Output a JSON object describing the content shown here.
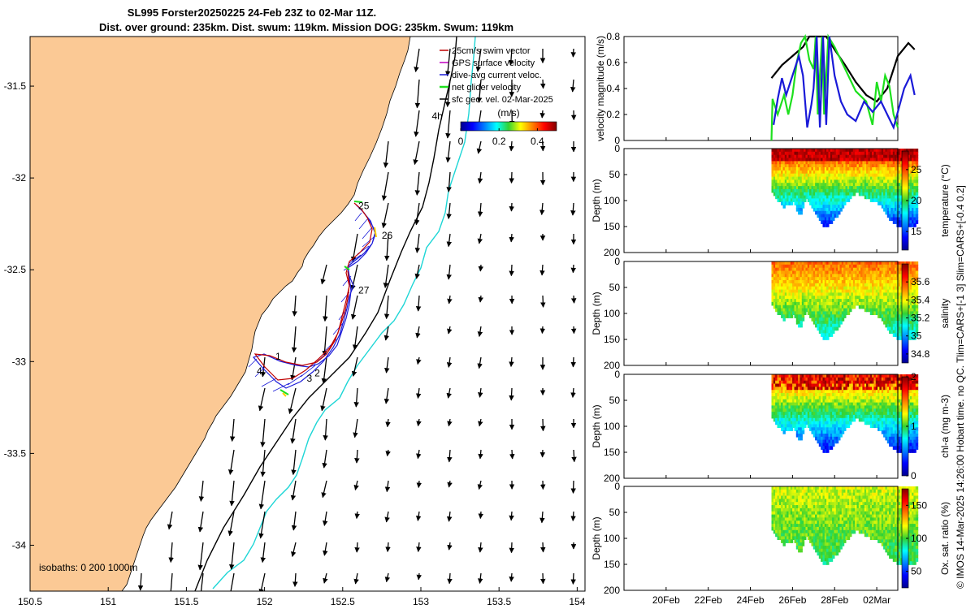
{
  "title_line1": "SL995 Forster20250225 24-Feb 23Z to 02-Mar 11Z.",
  "title_line2": "Dist. over ground: 235km. Dist. swum: 119km. Mission DOG: 235km. Swum: 119km",
  "credit": "© IMOS 14-Mar-2025 14:26:00 Hobart time. no QC. Tlim=CARS+[-1 3] Slim=CARS+[-0.4 0.2]",
  "colors": {
    "land": "#FBC995",
    "coast": "#000000",
    "isobath_200": "#000000",
    "isobath_1000": "#1ED6D6",
    "track_dive": "#1A1AD8",
    "track_swim": "#C00000",
    "net_velocity": "#1EE01E"
  },
  "chart_data": [
    {
      "type": "map",
      "name": "glider-track-map",
      "xlim": [
        150.5,
        154.05
      ],
      "ylim": [
        -34.25,
        -31.23
      ],
      "x_ticks": [
        "150.5",
        "151",
        "151.5",
        "152",
        "152.5",
        "153",
        "153.5",
        "154"
      ],
      "y_ticks": [
        "-31.5",
        "-32",
        "-32.5",
        "-33",
        "-33.5",
        "-34"
      ],
      "legend": [
        {
          "label": "25cm/s swim vector",
          "color": "#C00000"
        },
        {
          "label": "GPS surface velocity",
          "color": "#C000C0"
        },
        {
          "label": "dive-avg current veloc.",
          "color": "#1A1AD8"
        },
        {
          "label": "net glider velocity",
          "color": "#1EE01E"
        },
        {
          "label": "sfc geo. vel. 02-Mar-2025",
          "color": "#000000"
        }
      ],
      "legend_placement": "top-right",
      "colorbar": {
        "label": "(m/s)",
        "ticks": [
          "0",
          "0.2",
          "0.4"
        ],
        "range": [
          0,
          0.5
        ]
      },
      "track_day_labels": [
        {
          "text": "1",
          "lon": 152.07,
          "lat": -32.99
        },
        {
          "text": "2",
          "lon": 152.32,
          "lat": -33.08
        },
        {
          "text": "3",
          "lon": 152.27,
          "lat": -33.11
        },
        {
          "text": "4",
          "lon": 151.95,
          "lat": -33.07
        },
        {
          "text": "25",
          "lon": 152.6,
          "lat": -32.17
        },
        {
          "text": "26",
          "lon": 152.75,
          "lat": -32.33
        },
        {
          "text": "27",
          "lon": 152.6,
          "lat": -32.63
        },
        {
          "text": "4h",
          "lon": 153.07,
          "lat": -31.68
        }
      ],
      "isobaths_label": "isobaths: 0   200  1000m",
      "grid": false
    },
    {
      "type": "line",
      "name": "velocity-magnitude",
      "ylabel": "velocity magnitude (m/s)",
      "ylim": [
        0,
        0.8
      ],
      "y_ticks": [
        "0",
        "0.2",
        "0.4",
        "0.6",
        "0.8"
      ],
      "x_dates": [
        "2025-02-18",
        "2025-03-03"
      ],
      "series": [
        {
          "color": "#000000",
          "points": [
            [
              25.0,
              0.48
            ],
            [
              25.5,
              0.58
            ],
            [
              26.0,
              0.65
            ],
            [
              26.5,
              0.72
            ],
            [
              26.8,
              0.8
            ],
            [
              27.2,
              0.8
            ],
            [
              27.6,
              0.8
            ],
            [
              28.0,
              0.7
            ],
            [
              28.5,
              0.58
            ],
            [
              29.0,
              0.45
            ],
            [
              29.5,
              0.35
            ],
            [
              30.0,
              0.3
            ],
            [
              30.5,
              0.4
            ],
            [
              31.0,
              0.65
            ],
            [
              31.5,
              0.75
            ],
            [
              31.8,
              0.7
            ]
          ]
        },
        {
          "color": "#1EE01E",
          "points": [
            [
              25.0,
              0.0
            ],
            [
              25.05,
              0.32
            ],
            [
              25.3,
              0.2
            ],
            [
              25.6,
              0.35
            ],
            [
              25.8,
              0.2
            ],
            [
              26.0,
              0.35
            ],
            [
              26.2,
              0.6
            ],
            [
              26.4,
              0.75
            ],
            [
              26.6,
              0.8
            ],
            [
              26.8,
              0.62
            ],
            [
              27.0,
              0.55
            ],
            [
              27.1,
              0.8
            ],
            [
              27.2,
              0.2
            ],
            [
              27.4,
              0.8
            ],
            [
              27.5,
              0.2
            ],
            [
              27.7,
              0.8
            ],
            [
              28.0,
              0.72
            ],
            [
              28.5,
              0.55
            ],
            [
              29.0,
              0.38
            ],
            [
              29.5,
              0.3
            ],
            [
              29.8,
              0.12
            ],
            [
              30.0,
              0.45
            ],
            [
              30.2,
              0.3
            ],
            [
              30.4,
              0.5
            ],
            [
              30.6,
              0.42
            ],
            [
              30.8,
              0.2
            ],
            [
              31.0,
              0.1
            ]
          ]
        },
        {
          "color": "#1A1AD8",
          "points": [
            [
              25.1,
              0.12
            ],
            [
              25.3,
              0.32
            ],
            [
              25.5,
              0.48
            ],
            [
              25.7,
              0.35
            ],
            [
              25.9,
              0.45
            ],
            [
              26.1,
              0.55
            ],
            [
              26.3,
              0.65
            ],
            [
              26.5,
              0.5
            ],
            [
              26.7,
              0.1
            ],
            [
              26.9,
              0.28
            ],
            [
              27.0,
              0.4
            ],
            [
              27.15,
              0.8
            ],
            [
              27.3,
              0.1
            ],
            [
              27.45,
              0.8
            ],
            [
              27.6,
              0.12
            ],
            [
              27.75,
              0.8
            ],
            [
              28.0,
              0.5
            ],
            [
              28.3,
              0.3
            ],
            [
              28.6,
              0.2
            ],
            [
              29.0,
              0.15
            ],
            [
              29.4,
              0.3
            ],
            [
              29.8,
              0.22
            ],
            [
              30.2,
              0.3
            ],
            [
              30.5,
              0.2
            ],
            [
              30.8,
              0.1
            ],
            [
              31.0,
              0.22
            ],
            [
              31.3,
              0.4
            ],
            [
              31.6,
              0.5
            ],
            [
              31.8,
              0.35
            ]
          ]
        }
      ]
    },
    {
      "type": "heatmap",
      "name": "temperature-section",
      "ylabel": "Depth (m)",
      "clabel": "temperature (°C)",
      "clim": [
        12,
        28
      ],
      "cticks": [
        "15",
        "20",
        "25"
      ],
      "y_ticks": [
        "0",
        "50",
        "100",
        "150",
        "200"
      ],
      "ylim": [
        0,
        200
      ],
      "surface_value": 26,
      "deep_value": 14
    },
    {
      "type": "heatmap",
      "name": "salinity-section",
      "ylabel": "Depth (m)",
      "clabel": "salinity",
      "clim": [
        34.7,
        35.8
      ],
      "cticks": [
        "34.8",
        "35",
        "35.2",
        "35.4",
        "35.6"
      ],
      "y_ticks": [
        "0",
        "50",
        "100",
        "150",
        "200"
      ],
      "ylim": [
        0,
        200
      ],
      "surface_value": 35.55,
      "deep_value": 35.1
    },
    {
      "type": "heatmap",
      "name": "chla-section",
      "ylabel": "Depth (m)",
      "clabel": "chl-a (mg m-3)",
      "clim": [
        0,
        2
      ],
      "cticks": [
        "0",
        "1",
        "2"
      ],
      "y_ticks": [
        "0",
        "50",
        "100",
        "150",
        "200"
      ],
      "ylim": [
        0,
        200
      ],
      "surface_value": 1.6,
      "deep_value": 0.2
    },
    {
      "type": "heatmap",
      "name": "oxygen-section",
      "ylabel": "Depth (m)",
      "clabel": "Ox. sat. ratio (%)",
      "clim": [
        25,
        175
      ],
      "cticks": [
        "50",
        "100",
        "150"
      ],
      "y_ticks": [
        "0",
        "50",
        "100",
        "150",
        "200"
      ],
      "ylim": [
        0,
        200
      ],
      "surface_value": 115,
      "deep_value": 95
    }
  ],
  "time_axis_ticks": [
    "20Feb",
    "22Feb",
    "24Feb",
    "26Feb",
    "28Feb",
    "02Mar"
  ]
}
